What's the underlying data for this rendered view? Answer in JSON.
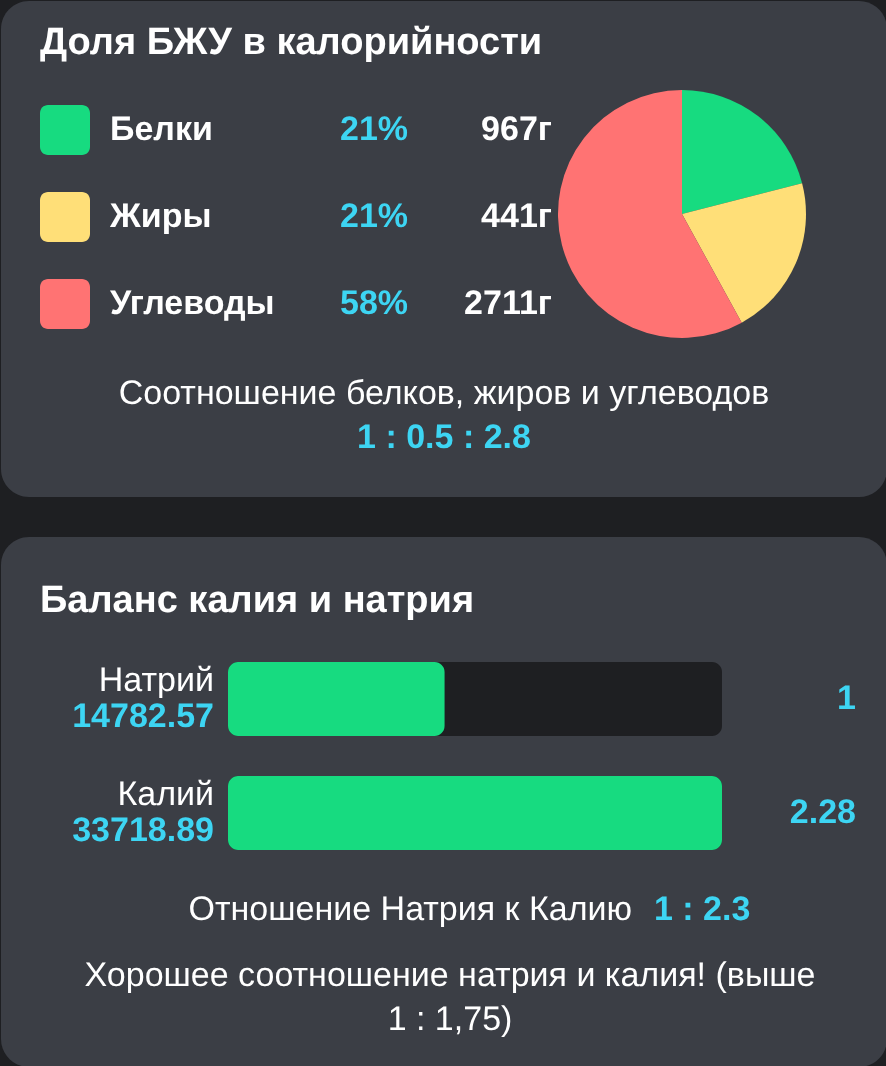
{
  "chart_data": [
    {
      "type": "pie",
      "title": "Доля БЖУ в калорийности",
      "categories": [
        "Белки",
        "Жиры",
        "Углеводы"
      ],
      "values": [
        21,
        21,
        58
      ],
      "colors": [
        "#17db80",
        "#ffdf78",
        "#ff7373"
      ],
      "value_labels": [
        "21%",
        "21%",
        "58%"
      ],
      "legend": "left",
      "annotations": [
        "967г",
        "441г",
        "2711г",
        "Соотношение белков, жиров и углеводов",
        "1 : 0.5 : 2.8"
      ]
    },
    {
      "type": "bar",
      "orientation": "horizontal",
      "title": "Баланс калия и натрия",
      "categories": [
        "Натрий",
        "Калий"
      ],
      "values": [
        14782.57,
        33718.89
      ],
      "color": "#17db80",
      "data_labels": true,
      "annotations": [
        "1",
        "2.28",
        "Отношение Натрия к Калию",
        "1 : 2.3",
        "Хорошее соотношение натрия и калия! (выше 1 : 1,75)"
      ]
    }
  ]
}
